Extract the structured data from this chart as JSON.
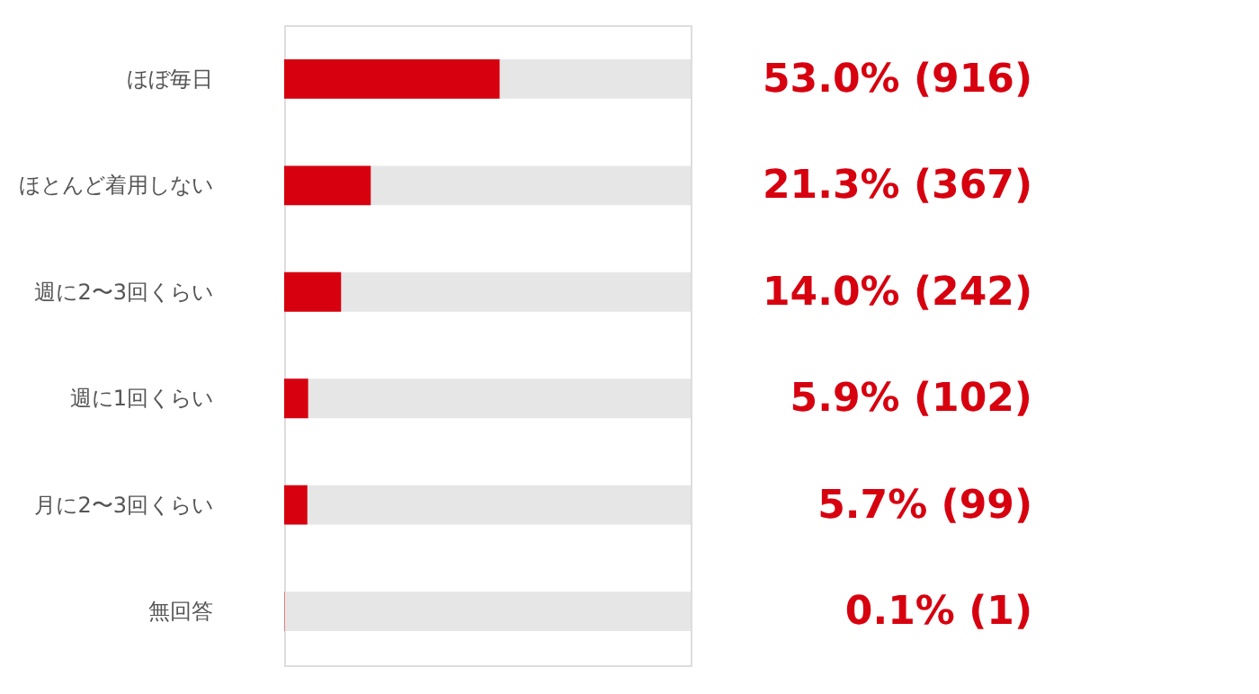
{
  "chart_data": {
    "type": "bar",
    "orientation": "horizontal",
    "categories": [
      "ほぼ毎日",
      "ほとんど着用しない",
      "週に2〜3回くらい",
      "週に1回くらい",
      "月に2〜3回くらい",
      "無回答"
    ],
    "values": [
      53.0,
      21.3,
      14.0,
      5.9,
      5.7,
      0.1
    ],
    "value_labels": [
      "53.0% (916)",
      "21.3% (367)",
      "14.0% (242)",
      "5.9% (102)",
      "5.7% (99)",
      "0.1% (1)"
    ],
    "color": "#d7000f",
    "xlim": [
      0,
      100
    ]
  }
}
